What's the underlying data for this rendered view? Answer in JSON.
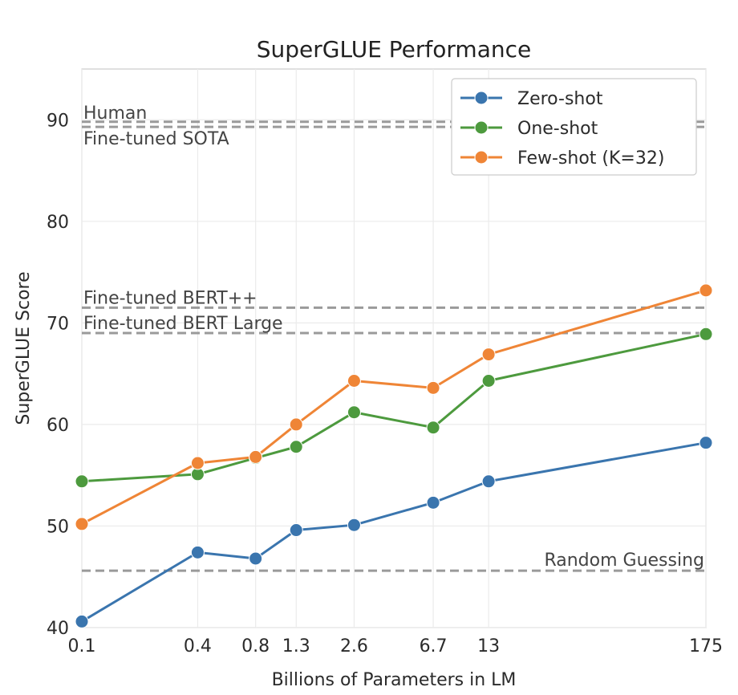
{
  "chart_data": {
    "type": "line",
    "title": "SuperGLUE Performance",
    "xlabel": "Billions of Parameters in LM",
    "ylabel": "SuperGLUE Score",
    "x_scale": "log",
    "x_ticks": [
      "0.1",
      "0.4",
      "0.8",
      "1.3",
      "2.6",
      "6.7",
      "13",
      "175"
    ],
    "x_values": [
      0.1,
      0.4,
      0.8,
      1.3,
      2.6,
      6.7,
      13,
      175
    ],
    "ylim": [
      40,
      95
    ],
    "y_ticks": [
      40,
      50,
      60,
      70,
      80,
      90
    ],
    "grid": true,
    "legend_position": "top-right",
    "series": [
      {
        "name": "Zero-shot",
        "color": "#3a75ae",
        "values": [
          40.6,
          47.4,
          46.8,
          49.6,
          50.1,
          52.3,
          54.4,
          58.2
        ]
      },
      {
        "name": "One-shot",
        "color": "#4d9a3e",
        "values": [
          54.4,
          55.1,
          56.7,
          57.8,
          61.2,
          59.7,
          64.3,
          68.9
        ]
      },
      {
        "name": "Few-shot (K=32)",
        "color": "#ef8536",
        "values": [
          50.2,
          56.2,
          56.8,
          60.0,
          64.3,
          63.6,
          66.9,
          73.2
        ]
      }
    ],
    "reference_lines": [
      {
        "label": "Human",
        "value": 89.8
      },
      {
        "label": "Fine-tuned SOTA",
        "value": 89.3
      },
      {
        "label": "Fine-tuned BERT++",
        "value": 71.5
      },
      {
        "label": "Fine-tuned BERT Large",
        "value": 69.0
      },
      {
        "label": "Random Guessing",
        "value": 45.6
      }
    ]
  }
}
